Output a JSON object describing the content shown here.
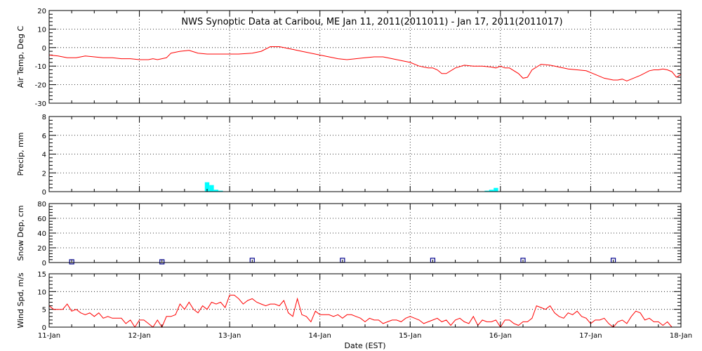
{
  "chart_data": {
    "type": "line",
    "title": "NWS Synoptic Data at Caribou, ME   Jan 11, 2011(2011011) - Jan 17, 2011(2011017)",
    "xlabel": "Date (EST)",
    "x_tick_labels": [
      "11-Jan",
      "12-Jan",
      "13-Jan",
      "14-Jan",
      "15-Jan",
      "16-Jan",
      "17-Jan",
      "18-Jan"
    ],
    "xlim_days": [
      11,
      18
    ],
    "grid": true,
    "colors": {
      "air_temp": "#ff0000",
      "precip": "#00ffff",
      "snow_depth": "#00008b",
      "wind_speed": "#ff0000",
      "axes": "#000000"
    },
    "panels": [
      {
        "id": "air_temp",
        "type": "line",
        "ylabel": "Air Temp, Deg C",
        "ylim": [
          -30,
          20
        ],
        "y_ticks": [
          -30,
          -20,
          -10,
          0,
          10,
          20
        ],
        "y_tick_labels": [
          "-30",
          "-20",
          "-10",
          "0",
          "10",
          "20"
        ],
        "minor_step": 2,
        "series": [
          {
            "x": [
              11.0,
              11.1,
              11.2,
              11.3,
              11.4,
              11.5,
              11.6,
              11.7,
              11.8,
              11.9,
              12.0,
              12.1,
              12.15,
              12.2,
              12.25,
              12.3,
              12.35,
              12.45,
              12.55,
              12.65,
              12.75,
              12.9,
              13.1,
              13.25,
              13.35,
              13.45,
              13.55,
              13.6,
              13.7,
              13.8,
              13.9,
              14.0,
              14.1,
              14.2,
              14.3,
              14.4,
              14.5,
              14.6,
              14.7,
              14.8,
              14.9,
              15.0,
              15.1,
              15.2,
              15.25,
              15.3,
              15.35,
              15.4,
              15.5,
              15.6,
              15.7,
              15.8,
              15.9,
              15.95,
              16.0,
              16.05,
              16.1,
              16.2,
              16.25,
              16.3,
              16.35,
              16.45,
              16.55,
              16.65,
              16.75,
              16.85,
              16.95,
              17.05,
              17.15,
              17.25,
              17.3,
              17.35,
              17.4,
              17.45,
              17.55,
              17.65,
              17.7,
              17.75,
              17.8,
              17.85,
              17.9,
              17.95,
              18.0
            ],
            "values": [
              -4,
              -4.5,
              -5.5,
              -5.5,
              -4.5,
              -5,
              -5.5,
              -5.5,
              -6,
              -6,
              -6.5,
              -6.5,
              -6,
              -6.5,
              -6,
              -5.5,
              -3,
              -2,
              -1.5,
              -3,
              -3.5,
              -3.5,
              -3.5,
              -3,
              -2,
              0.5,
              0.5,
              0,
              -1,
              -2,
              -3,
              -4,
              -5,
              -6,
              -6.5,
              -6,
              -5.5,
              -5,
              -5,
              -6,
              -7,
              -8,
              -10,
              -11,
              -11,
              -12,
              -14,
              -14,
              -11,
              -9.5,
              -10,
              -10,
              -10.5,
              -11,
              -10,
              -11,
              -11,
              -14,
              -16.5,
              -16,
              -12,
              -9,
              -9.5,
              -10.5,
              -11.5,
              -12,
              -12.5,
              -14.5,
              -16.5,
              -17.5,
              -17.5,
              -17,
              -18,
              -17,
              -15,
              -12.5,
              -12,
              -12,
              -11.5,
              -12,
              -13,
              -16,
              -14.5
            ]
          }
        ]
      },
      {
        "id": "precip",
        "type": "bar",
        "ylabel": "Precip, mm",
        "ylim": [
          0,
          8
        ],
        "y_ticks": [
          0,
          2,
          4,
          6,
          8
        ],
        "y_tick_labels": [
          "0",
          "2",
          "4",
          "6",
          "8"
        ],
        "minor_step": 0.4,
        "series": [
          {
            "x": [
              12.75,
              12.8,
              12.85,
              12.9,
              15.85,
              15.9,
              15.95
            ],
            "values": [
              1.0,
              0.7,
              0.2,
              0.1,
              0.1,
              0.2,
              0.4
            ]
          }
        ]
      },
      {
        "id": "snow_depth",
        "type": "scatter",
        "ylabel": "Snow Dep, cm",
        "ylim": [
          0,
          80
        ],
        "y_ticks": [
          0,
          20,
          40,
          60,
          80
        ],
        "y_tick_labels": [
          "0",
          "20",
          "40",
          "60",
          "80"
        ],
        "minor_step": 4,
        "series": [
          {
            "x": [
              11.25,
              12.25,
              13.25,
              14.25,
              15.25,
              16.25,
              17.25
            ],
            "values": [
              1,
              1,
              3,
              3,
              3,
              3,
              3
            ]
          }
        ]
      },
      {
        "id": "wind_speed",
        "type": "line",
        "ylabel": "Wind Spd, m/s",
        "ylim": [
          0,
          15
        ],
        "y_ticks": [
          0,
          5,
          10,
          15
        ],
        "y_tick_labels": [
          "0",
          "5",
          "10",
          "15"
        ],
        "minor_step": 1,
        "series": [
          {
            "x": [
              11.0,
              11.05,
              11.1,
              11.15,
              11.2,
              11.25,
              11.3,
              11.35,
              11.4,
              11.45,
              11.5,
              11.55,
              11.6,
              11.65,
              11.7,
              11.75,
              11.8,
              11.85,
              11.9,
              11.95,
              12.0,
              12.05,
              12.1,
              12.15,
              12.2,
              12.25,
              12.3,
              12.35,
              12.4,
              12.45,
              12.5,
              12.55,
              12.6,
              12.65,
              12.7,
              12.75,
              12.8,
              12.85,
              12.9,
              12.95,
              13.0,
              13.05,
              13.1,
              13.15,
              13.2,
              13.25,
              13.3,
              13.35,
              13.4,
              13.45,
              13.5,
              13.55,
              13.6,
              13.65,
              13.7,
              13.75,
              13.8,
              13.85,
              13.9,
              13.95,
              14.0,
              14.05,
              14.1,
              14.15,
              14.2,
              14.25,
              14.3,
              14.35,
              14.4,
              14.45,
              14.5,
              14.55,
              14.6,
              14.65,
              14.7,
              14.75,
              14.8,
              14.85,
              14.9,
              14.95,
              15.0,
              15.05,
              15.1,
              15.15,
              15.2,
              15.25,
              15.3,
              15.35,
              15.4,
              15.45,
              15.5,
              15.55,
              15.6,
              15.65,
              15.7,
              15.75,
              15.8,
              15.85,
              15.9,
              15.95,
              16.0,
              16.05,
              16.1,
              16.15,
              16.2,
              16.25,
              16.3,
              16.35,
              16.4,
              16.45,
              16.5,
              16.55,
              16.6,
              16.65,
              16.7,
              16.75,
              16.8,
              16.85,
              16.9,
              16.95,
              17.0,
              17.05,
              17.1,
              17.15,
              17.2,
              17.25,
              17.3,
              17.35,
              17.4,
              17.45,
              17.5,
              17.55,
              17.6,
              17.65,
              17.7,
              17.75,
              17.8,
              17.85,
              17.9
            ],
            "values": [
              6,
              5,
              5,
              5,
              6.5,
              4.5,
              5,
              4,
              3.5,
              4,
              3,
              4,
              2.5,
              3,
              2.5,
              2.5,
              2.5,
              1,
              2,
              0,
              2,
              2,
              1,
              0,
              2,
              0,
              3,
              3,
              3.5,
              6.5,
              5,
              7,
              5,
              4,
              6,
              5,
              7,
              6.5,
              7,
              5.5,
              9,
              9,
              8,
              6.5,
              7.5,
              8,
              7,
              6.5,
              6,
              6.5,
              6.5,
              6,
              7.5,
              4,
              3,
              8,
              3.5,
              3,
              1.5,
              4.5,
              3.5,
              3.5,
              3.5,
              3,
              3.5,
              2.5,
              3.5,
              3.5,
              3,
              2.5,
              1.5,
              2.5,
              2,
              2,
              1,
              1.5,
              2,
              2,
              1.5,
              2.5,
              3,
              2.5,
              2,
              1,
              1.5,
              2,
              2.5,
              1.5,
              2,
              0.5,
              2,
              2.5,
              1.5,
              1,
              3,
              0.5,
              2,
              1.5,
              1.5,
              2,
              0,
              2,
              2,
              1,
              0.5,
              1.5,
              1.5,
              2.5,
              6,
              5.5,
              5,
              6,
              4,
              3,
              2.5,
              4,
              3.5,
              4.5,
              3,
              2.5,
              1,
              2,
              2,
              2.5,
              1,
              0,
              1.5,
              2,
              1,
              3,
              4.5,
              4,
              2,
              2.5,
              1.5,
              1.5,
              0.5,
              1.5,
              0
            ]
          }
        ]
      }
    ]
  }
}
